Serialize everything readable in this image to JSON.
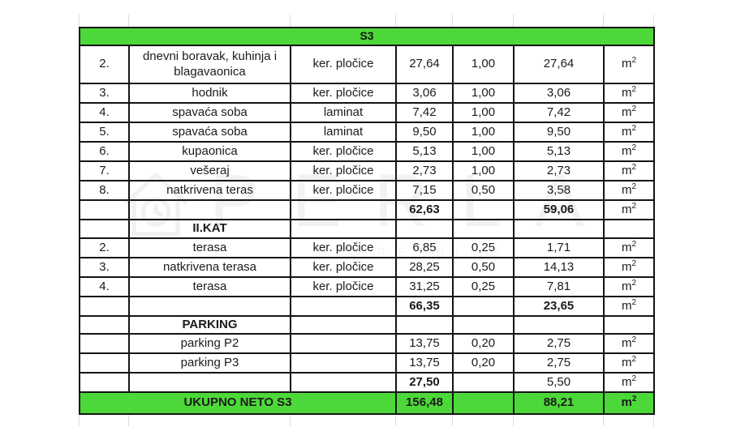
{
  "colors": {
    "accent_green": "#4dd839",
    "table_border": "#141414",
    "faint_gridline": "#dcdcdc"
  },
  "watermark": {
    "brand": "PERLA",
    "subtitle": "NEKRETNINE",
    "icon": "house-outline-icon"
  },
  "table": {
    "unit": {
      "base": "m",
      "sup": "2"
    },
    "rows": [
      {
        "type": "title",
        "label": "S3"
      },
      {
        "type": "data",
        "num": "2.",
        "name": "dnevni boravak, kuhinja i blagavaonica",
        "material": "ker. pločice",
        "area": "27,64",
        "coef": "1,00",
        "net": "27,64"
      },
      {
        "type": "data",
        "num": "3.",
        "name": "hodnik",
        "material": "ker. pločice",
        "area": "3,06",
        "coef": "1,00",
        "net": "3,06"
      },
      {
        "type": "data",
        "num": "4.",
        "name": "spavaća soba",
        "material": "laminat",
        "area": "7,42",
        "coef": "1,00",
        "net": "7,42"
      },
      {
        "type": "data",
        "num": "5.",
        "name": "spavaća soba",
        "material": "laminat",
        "area": "9,50",
        "coef": "1,00",
        "net": "9,50"
      },
      {
        "type": "data",
        "num": "6.",
        "name": "kupaonica",
        "material": "ker. pločice",
        "area": "5,13",
        "coef": "1,00",
        "net": "5,13"
      },
      {
        "type": "data",
        "num": "7.",
        "name": "vešeraj",
        "material": "ker. pločice",
        "area": "2,73",
        "coef": "1,00",
        "net": "2,73"
      },
      {
        "type": "data",
        "num": "8.",
        "name": "natkrivena teras",
        "material": "ker. pločice",
        "area": "7,15",
        "coef": "0,50",
        "net": "3,58"
      },
      {
        "type": "subtotal",
        "area": "62,63",
        "net": "59,06",
        "area_bold": true,
        "net_bold": true
      },
      {
        "type": "section",
        "name": "II.KAT"
      },
      {
        "type": "data",
        "num": "2.",
        "name": "terasa",
        "material": "ker. pločice",
        "area": "6,85",
        "coef": "0,25",
        "net": "1,71"
      },
      {
        "type": "data",
        "num": "3.",
        "name": "natkrivena terasa",
        "material": "ker. pločice",
        "area": "28,25",
        "coef": "0,50",
        "net": "14,13"
      },
      {
        "type": "data",
        "num": "4.",
        "name": "terasa",
        "material": "ker. pločice",
        "area": "31,25",
        "coef": "0,25",
        "net": "7,81"
      },
      {
        "type": "subtotal",
        "area": "66,35",
        "net": "23,65",
        "area_bold": true,
        "net_bold": true
      },
      {
        "type": "section",
        "name": "PARKING"
      },
      {
        "type": "data",
        "num": "",
        "name": "parking P2",
        "material": "",
        "area": "13,75",
        "coef": "0,20",
        "net": "2,75"
      },
      {
        "type": "data",
        "num": "",
        "name": "parking P3",
        "material": "",
        "area": "13,75",
        "coef": "0,20",
        "net": "2,75"
      },
      {
        "type": "subtotal",
        "area": "27,50",
        "net": "5,50",
        "area_bold": true,
        "net_bold": false
      },
      {
        "type": "total",
        "label": "UKUPNO NETO S3",
        "area": "156,48",
        "net": "88,21"
      }
    ]
  }
}
